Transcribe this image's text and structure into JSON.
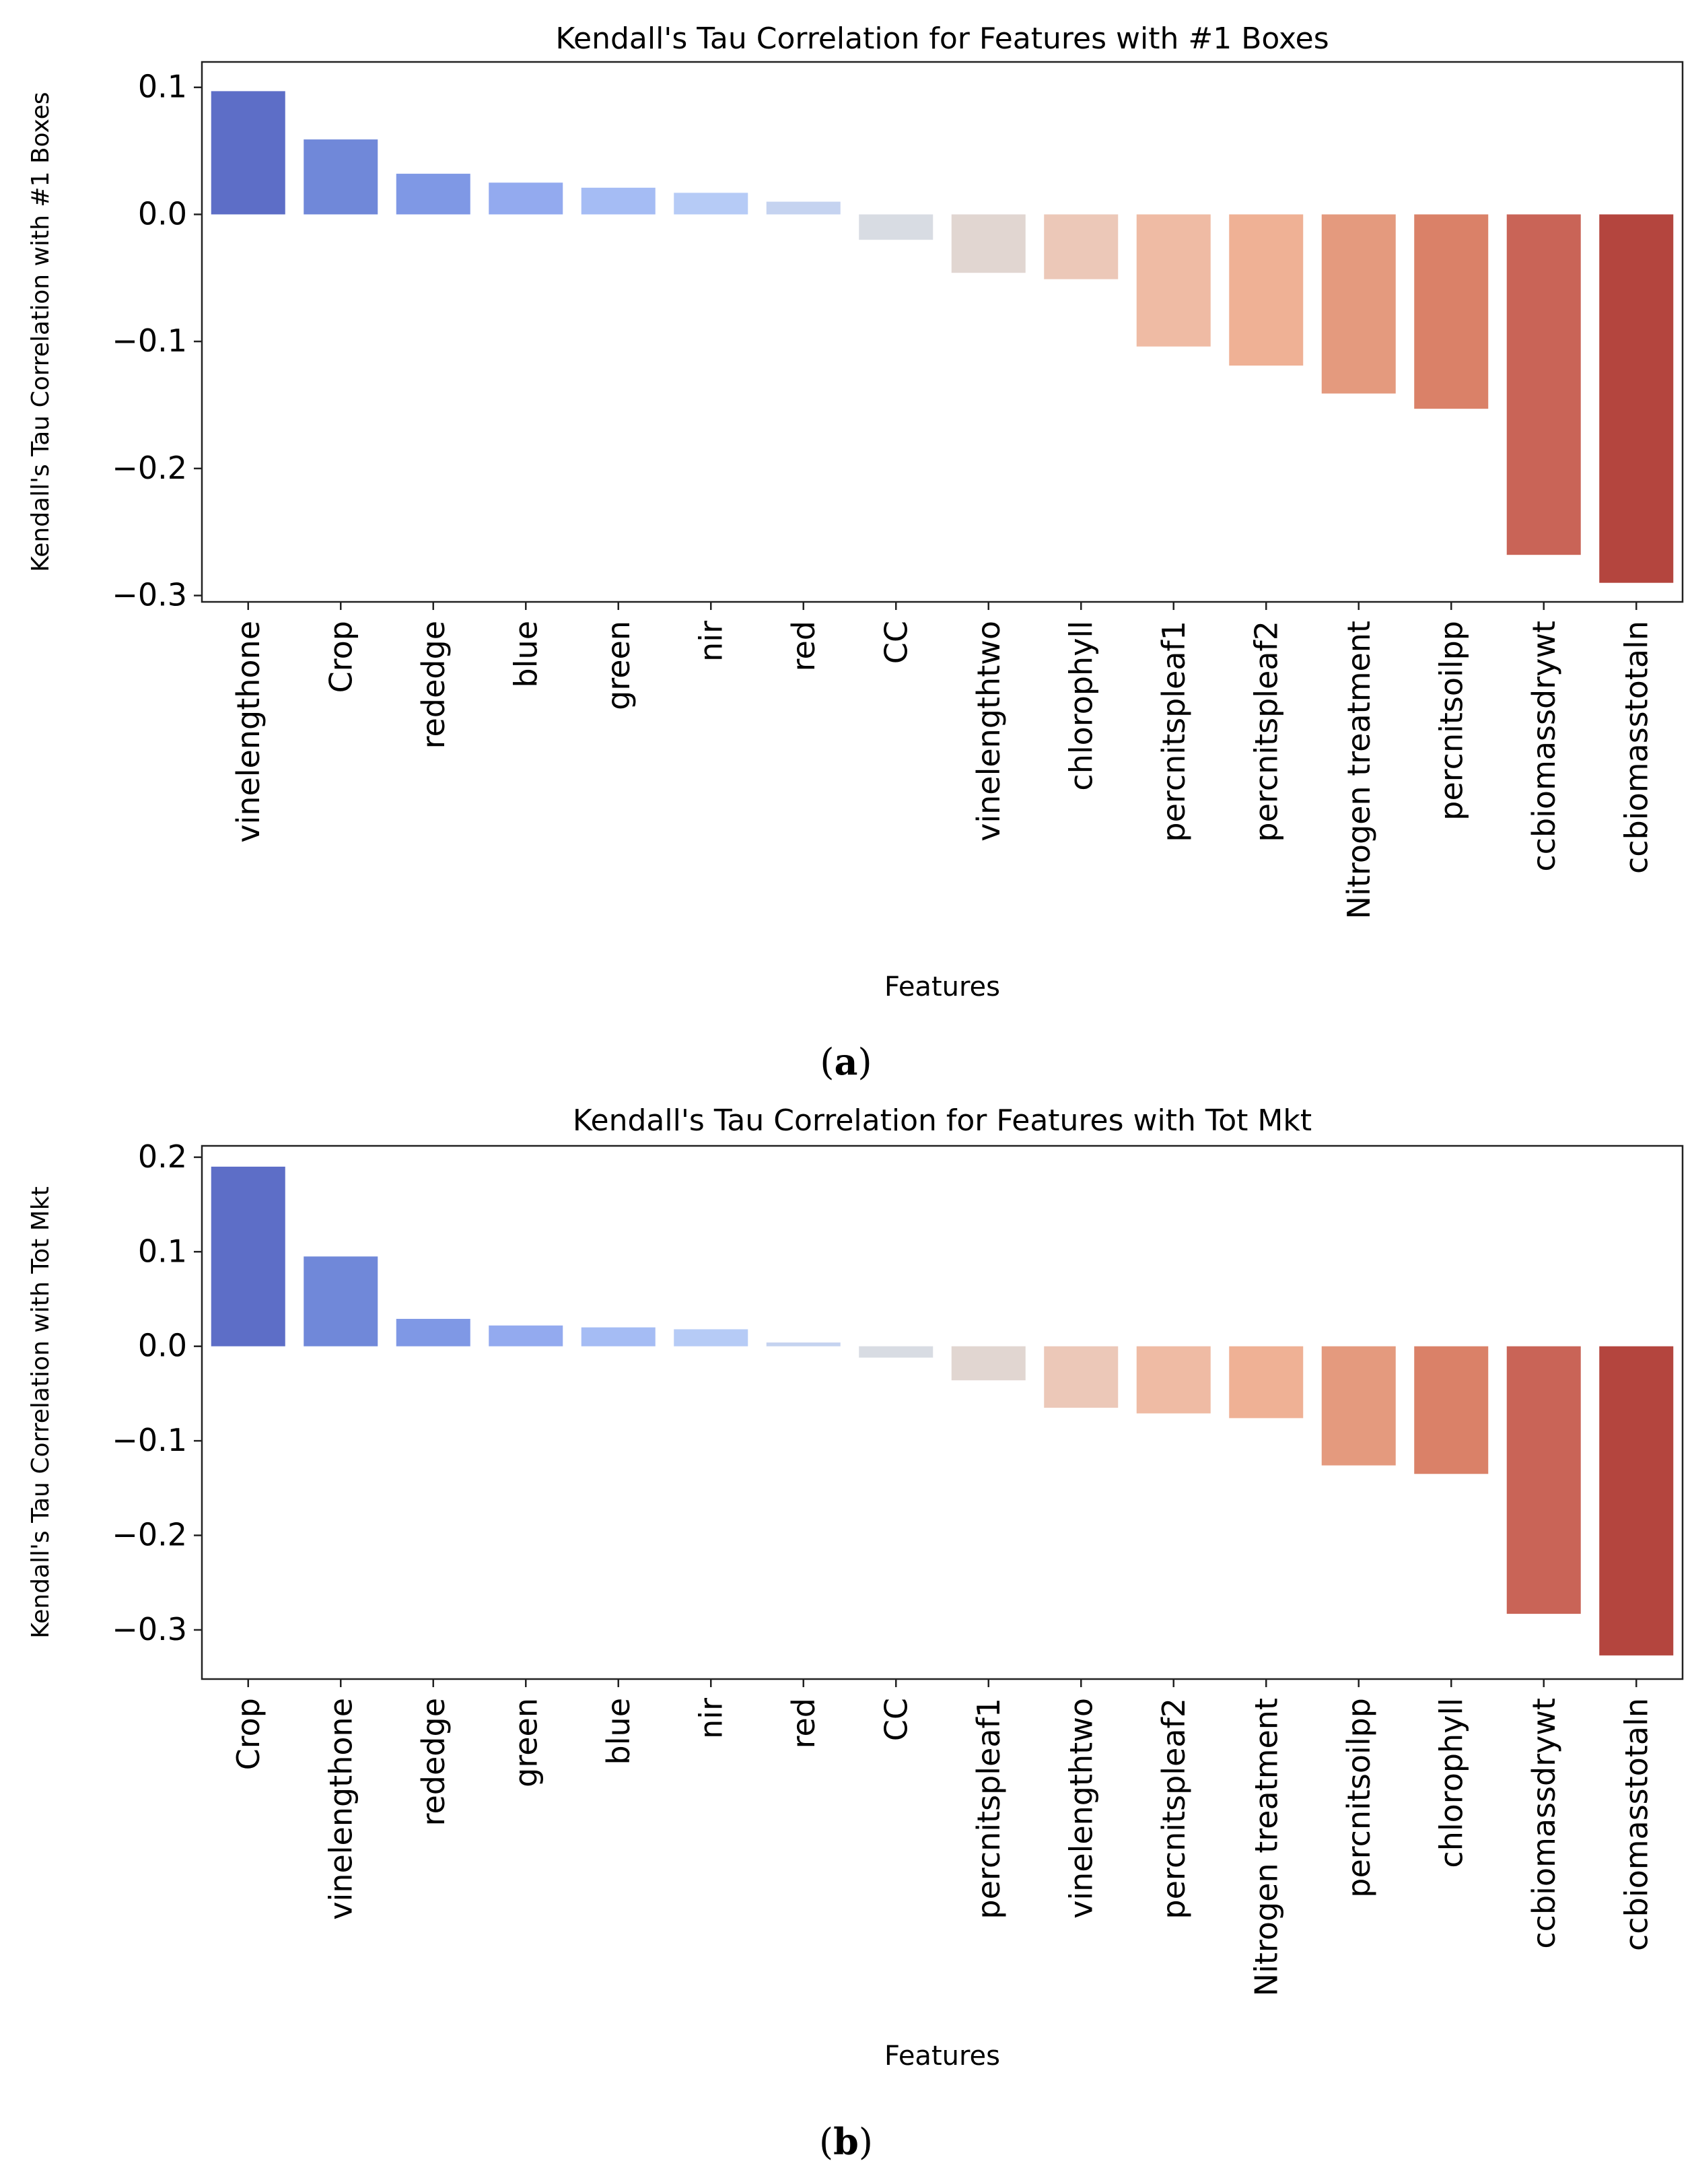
{
  "chart_data": [
    {
      "type": "bar",
      "title": "Kendall's Tau Correlation for Features with #1 Boxes",
      "xlabel": "Features",
      "ylabel": "Kendall's Tau Correlation with #1 Boxes",
      "ylim": [
        -0.305,
        0.12
      ],
      "yticks": [
        0.1,
        0.0,
        -0.1,
        -0.2,
        -0.3
      ],
      "ytick_labels": [
        "0.1",
        "0.0",
        "−0.1",
        "−0.2",
        "−0.3"
      ],
      "categories": [
        "vinelengthone",
        "Crop",
        "rededge",
        "blue",
        "green",
        "nir",
        "red",
        "CC",
        "vinelengthtwo",
        "chlorophyll",
        "percnitspleaf1",
        "percnitspleaf2",
        "Nitrogen treatment",
        "percnitsoilpp",
        "ccbiomassdrywt",
        "ccbiomasstotaln"
      ],
      "values": [
        0.097,
        0.059,
        0.032,
        0.025,
        0.021,
        0.017,
        0.01,
        -0.02,
        -0.046,
        -0.051,
        -0.104,
        -0.119,
        -0.141,
        -0.153,
        -0.268,
        -0.29
      ],
      "colors": [
        "#5d6ec7",
        "#7088d9",
        "#7f98e5",
        "#93aaef",
        "#a5bcf4",
        "#b6cbf6",
        "#c5d3f0",
        "#d8dce3",
        "#e1d6d1",
        "#ecc8b8",
        "#efbba4",
        "#efb195",
        "#e49a7e",
        "#da8168",
        "#c96457",
        "#b4453e"
      ],
      "caption_letter": "a"
    },
    {
      "type": "bar",
      "title": "Kendall's Tau Correlation for Features with Tot Mkt",
      "xlabel": "Features",
      "ylabel": "Kendall's Tau Correlation with Tot Mkt",
      "ylim": [
        -0.352,
        0.212
      ],
      "yticks": [
        0.2,
        0.1,
        0.0,
        -0.1,
        -0.2,
        -0.3
      ],
      "ytick_labels": [
        "0.2",
        "0.1",
        "0.0",
        "−0.1",
        "−0.2",
        "−0.3"
      ],
      "categories": [
        "Crop",
        "vinelengthone",
        "rededge",
        "green",
        "blue",
        "nir",
        "red",
        "CC",
        "percnitspleaf1",
        "vinelengthtwo",
        "percnitspleaf2",
        "Nitrogen treatment",
        "percnitsoilpp",
        "chlorophyll",
        "ccbiomassdrywt",
        "ccbiomasstotaln"
      ],
      "values": [
        0.19,
        0.095,
        0.029,
        0.022,
        0.02,
        0.018,
        0.004,
        -0.012,
        -0.036,
        -0.065,
        -0.071,
        -0.076,
        -0.126,
        -0.135,
        -0.283,
        -0.327
      ],
      "colors": [
        "#5d6ec7",
        "#7088d9",
        "#7f98e5",
        "#93aaef",
        "#a5bcf4",
        "#b6cbf6",
        "#c5d3f0",
        "#d8dce3",
        "#e1d6d1",
        "#ecc8b8",
        "#efbba4",
        "#efb195",
        "#e49a7e",
        "#da8168",
        "#c96457",
        "#b4453e"
      ],
      "caption_letter": "b"
    }
  ]
}
